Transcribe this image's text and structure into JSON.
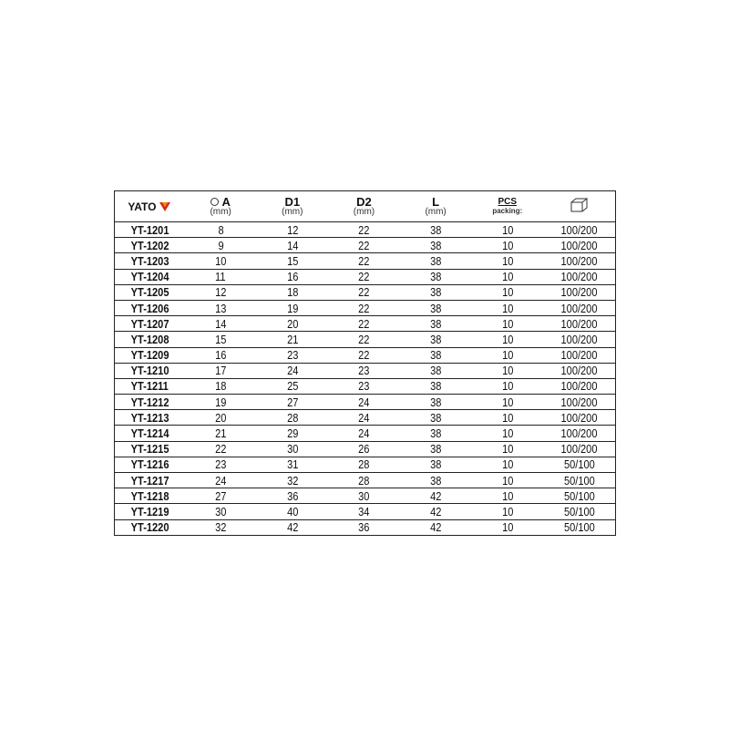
{
  "brand": "YATO",
  "headers": [
    {
      "label": "A",
      "unit": "(mm)",
      "icon": "circle-icon"
    },
    {
      "label": "D1",
      "unit": "(mm)"
    },
    {
      "label": "D2",
      "unit": "(mm)"
    },
    {
      "label": "L",
      "unit": "(mm)"
    },
    {
      "label": "PCS",
      "unit": "packing:"
    },
    {
      "icon": "box-icon"
    }
  ],
  "rows": [
    [
      "YT-1201",
      "8",
      "12",
      "22",
      "38",
      "10",
      "100/200"
    ],
    [
      "YT-1202",
      "9",
      "14",
      "22",
      "38",
      "10",
      "100/200"
    ],
    [
      "YT-1203",
      "10",
      "15",
      "22",
      "38",
      "10",
      "100/200"
    ],
    [
      "YT-1204",
      "11",
      "16",
      "22",
      "38",
      "10",
      "100/200"
    ],
    [
      "YT-1205",
      "12",
      "18",
      "22",
      "38",
      "10",
      "100/200"
    ],
    [
      "YT-1206",
      "13",
      "19",
      "22",
      "38",
      "10",
      "100/200"
    ],
    [
      "YT-1207",
      "14",
      "20",
      "22",
      "38",
      "10",
      "100/200"
    ],
    [
      "YT-1208",
      "15",
      "21",
      "22",
      "38",
      "10",
      "100/200"
    ],
    [
      "YT-1209",
      "16",
      "23",
      "22",
      "38",
      "10",
      "100/200"
    ],
    [
      "YT-1210",
      "17",
      "24",
      "23",
      "38",
      "10",
      "100/200"
    ],
    [
      "YT-1211",
      "18",
      "25",
      "23",
      "38",
      "10",
      "100/200"
    ],
    [
      "YT-1212",
      "19",
      "27",
      "24",
      "38",
      "10",
      "100/200"
    ],
    [
      "YT-1213",
      "20",
      "28",
      "24",
      "38",
      "10",
      "100/200"
    ],
    [
      "YT-1214",
      "21",
      "29",
      "24",
      "38",
      "10",
      "100/200"
    ],
    [
      "YT-1215",
      "22",
      "30",
      "26",
      "38",
      "10",
      "100/200"
    ],
    [
      "YT-1216",
      "23",
      "31",
      "28",
      "38",
      "10",
      "50/100"
    ],
    [
      "YT-1217",
      "24",
      "32",
      "28",
      "38",
      "10",
      "50/100"
    ],
    [
      "YT-1218",
      "27",
      "36",
      "30",
      "42",
      "10",
      "50/100"
    ],
    [
      "YT-1219",
      "30",
      "40",
      "34",
      "42",
      "10",
      "50/100"
    ],
    [
      "YT-1220",
      "32",
      "42",
      "36",
      "42",
      "10",
      "50/100"
    ]
  ],
  "colors": {
    "logo_red": "#d9261c",
    "logo_orange": "#f08a00"
  }
}
